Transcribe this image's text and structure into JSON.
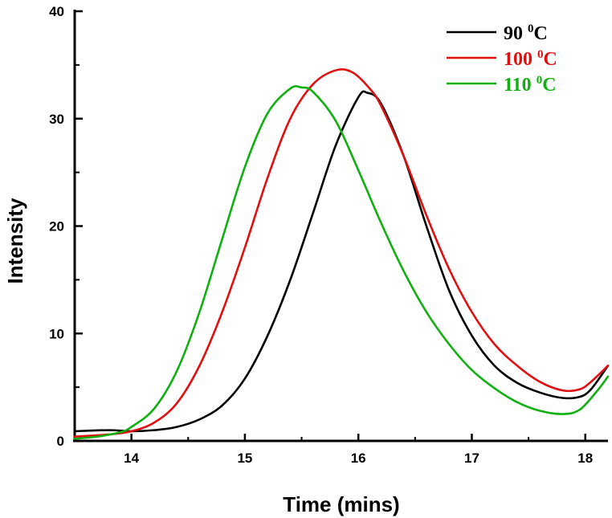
{
  "chart_data": {
    "type": "line",
    "title": "",
    "xlabel": "Time (mins)",
    "ylabel": "Intensity",
    "xlim": [
      13.5,
      18.2
    ],
    "ylim": [
      0,
      40
    ],
    "xticks": [
      "14",
      "15",
      "16",
      "17",
      "18"
    ],
    "yticks": [
      "0",
      "10",
      "20",
      "30",
      "40"
    ],
    "legend_position": "top-right",
    "series": [
      {
        "name": "90 ⁰C",
        "label_main": "90 ",
        "label_sup": "0",
        "label_unit": "C",
        "color": "#000000",
        "x": [
          13.5,
          13.8,
          14.0,
          14.2,
          14.4,
          14.6,
          14.8,
          15.0,
          15.2,
          15.4,
          15.6,
          15.8,
          16.0,
          16.08,
          16.2,
          16.4,
          16.6,
          16.8,
          17.0,
          17.2,
          17.4,
          17.6,
          17.8,
          17.95,
          18.05,
          18.2
        ],
        "y": [
          0.9,
          1.0,
          0.9,
          1.0,
          1.3,
          2.0,
          3.3,
          5.8,
          9.8,
          15.0,
          21.2,
          27.5,
          32.0,
          32.4,
          31.4,
          26.5,
          20.0,
          14.0,
          9.8,
          7.0,
          5.4,
          4.5,
          4.0,
          4.1,
          4.8,
          7.0
        ]
      },
      {
        "name": "100 ⁰C",
        "label_main": "100 ",
        "label_sup": "0",
        "label_unit": "C",
        "color": "#e01010",
        "x": [
          13.5,
          13.8,
          14.0,
          14.2,
          14.4,
          14.6,
          14.8,
          15.0,
          15.2,
          15.4,
          15.6,
          15.8,
          15.95,
          16.1,
          16.2,
          16.4,
          16.6,
          16.8,
          17.0,
          17.2,
          17.4,
          17.6,
          17.8,
          17.95,
          18.05,
          18.2
        ],
        "y": [
          0.4,
          0.6,
          0.9,
          1.7,
          3.5,
          7.0,
          12.0,
          18.0,
          24.5,
          30.0,
          33.2,
          34.5,
          34.3,
          32.8,
          31.2,
          26.5,
          21.0,
          16.0,
          12.0,
          9.0,
          7.0,
          5.5,
          4.7,
          4.8,
          5.5,
          7.0
        ]
      },
      {
        "name": "110 ⁰C",
        "label_main": "110 ",
        "label_sup": "0",
        "label_unit": "C",
        "color": "#10b010",
        "x": [
          13.5,
          13.7,
          13.9,
          14.0,
          14.2,
          14.4,
          14.6,
          14.8,
          15.0,
          15.2,
          15.4,
          15.5,
          15.6,
          15.8,
          16.0,
          16.2,
          16.4,
          16.6,
          16.8,
          17.0,
          17.2,
          17.4,
          17.6,
          17.8,
          17.95,
          18.1,
          18.2
        ],
        "y": [
          0.2,
          0.4,
          0.8,
          1.3,
          3.0,
          6.5,
          12.0,
          18.8,
          25.5,
          30.5,
          32.8,
          32.9,
          32.5,
          29.8,
          25.2,
          20.3,
          15.8,
          12.0,
          9.0,
          6.6,
          4.9,
          3.6,
          2.8,
          2.5,
          2.9,
          4.6,
          6.0
        ]
      }
    ]
  }
}
